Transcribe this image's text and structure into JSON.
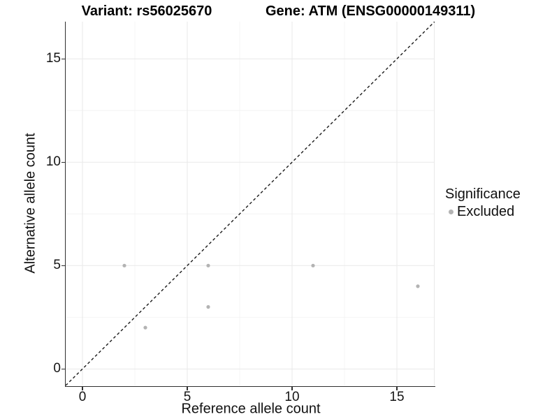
{
  "figure": {
    "title_left": "Variant: rs56025670",
    "title_right": "Gene: ATM (ENSG00000149311)"
  },
  "chart_data": {
    "type": "scatter",
    "title": "Variant: rs56025670 / Gene: ATM (ENSG00000149311)",
    "xlabel": "Reference allele count",
    "ylabel": "Alternative allele count",
    "xlim": [
      -0.8,
      16.8
    ],
    "ylim": [
      -0.8,
      16.8
    ],
    "x_ticks": [
      0,
      5,
      10,
      15
    ],
    "y_ticks": [
      0,
      5,
      10,
      15
    ],
    "x_minor_ticks": [
      2.5,
      7.5,
      12.5
    ],
    "y_minor_ticks": [
      2.5,
      7.5,
      12.5
    ],
    "grid": "major+minor",
    "identity_line": {
      "slope": 1,
      "intercept": 0,
      "style": "dashed",
      "color": "#1a1a1a"
    },
    "series": [
      {
        "name": "Excluded",
        "color": "#b3b3b3",
        "points": [
          [
            2,
            5
          ],
          [
            3,
            2
          ],
          [
            6,
            3
          ],
          [
            6,
            5
          ],
          [
            11,
            5
          ],
          [
            16,
            4
          ]
        ]
      }
    ],
    "legend": {
      "title": "Significance",
      "position": "right",
      "items": [
        {
          "label": "Excluded",
          "color": "#b3b3b3"
        }
      ]
    }
  },
  "colors": {
    "background": "#ffffff",
    "grid_major": "#e9e9e9",
    "grid_minor": "#f4f4f4",
    "axis": "#2f2f2f",
    "text": "#111111",
    "point": "#b3b3b3"
  }
}
